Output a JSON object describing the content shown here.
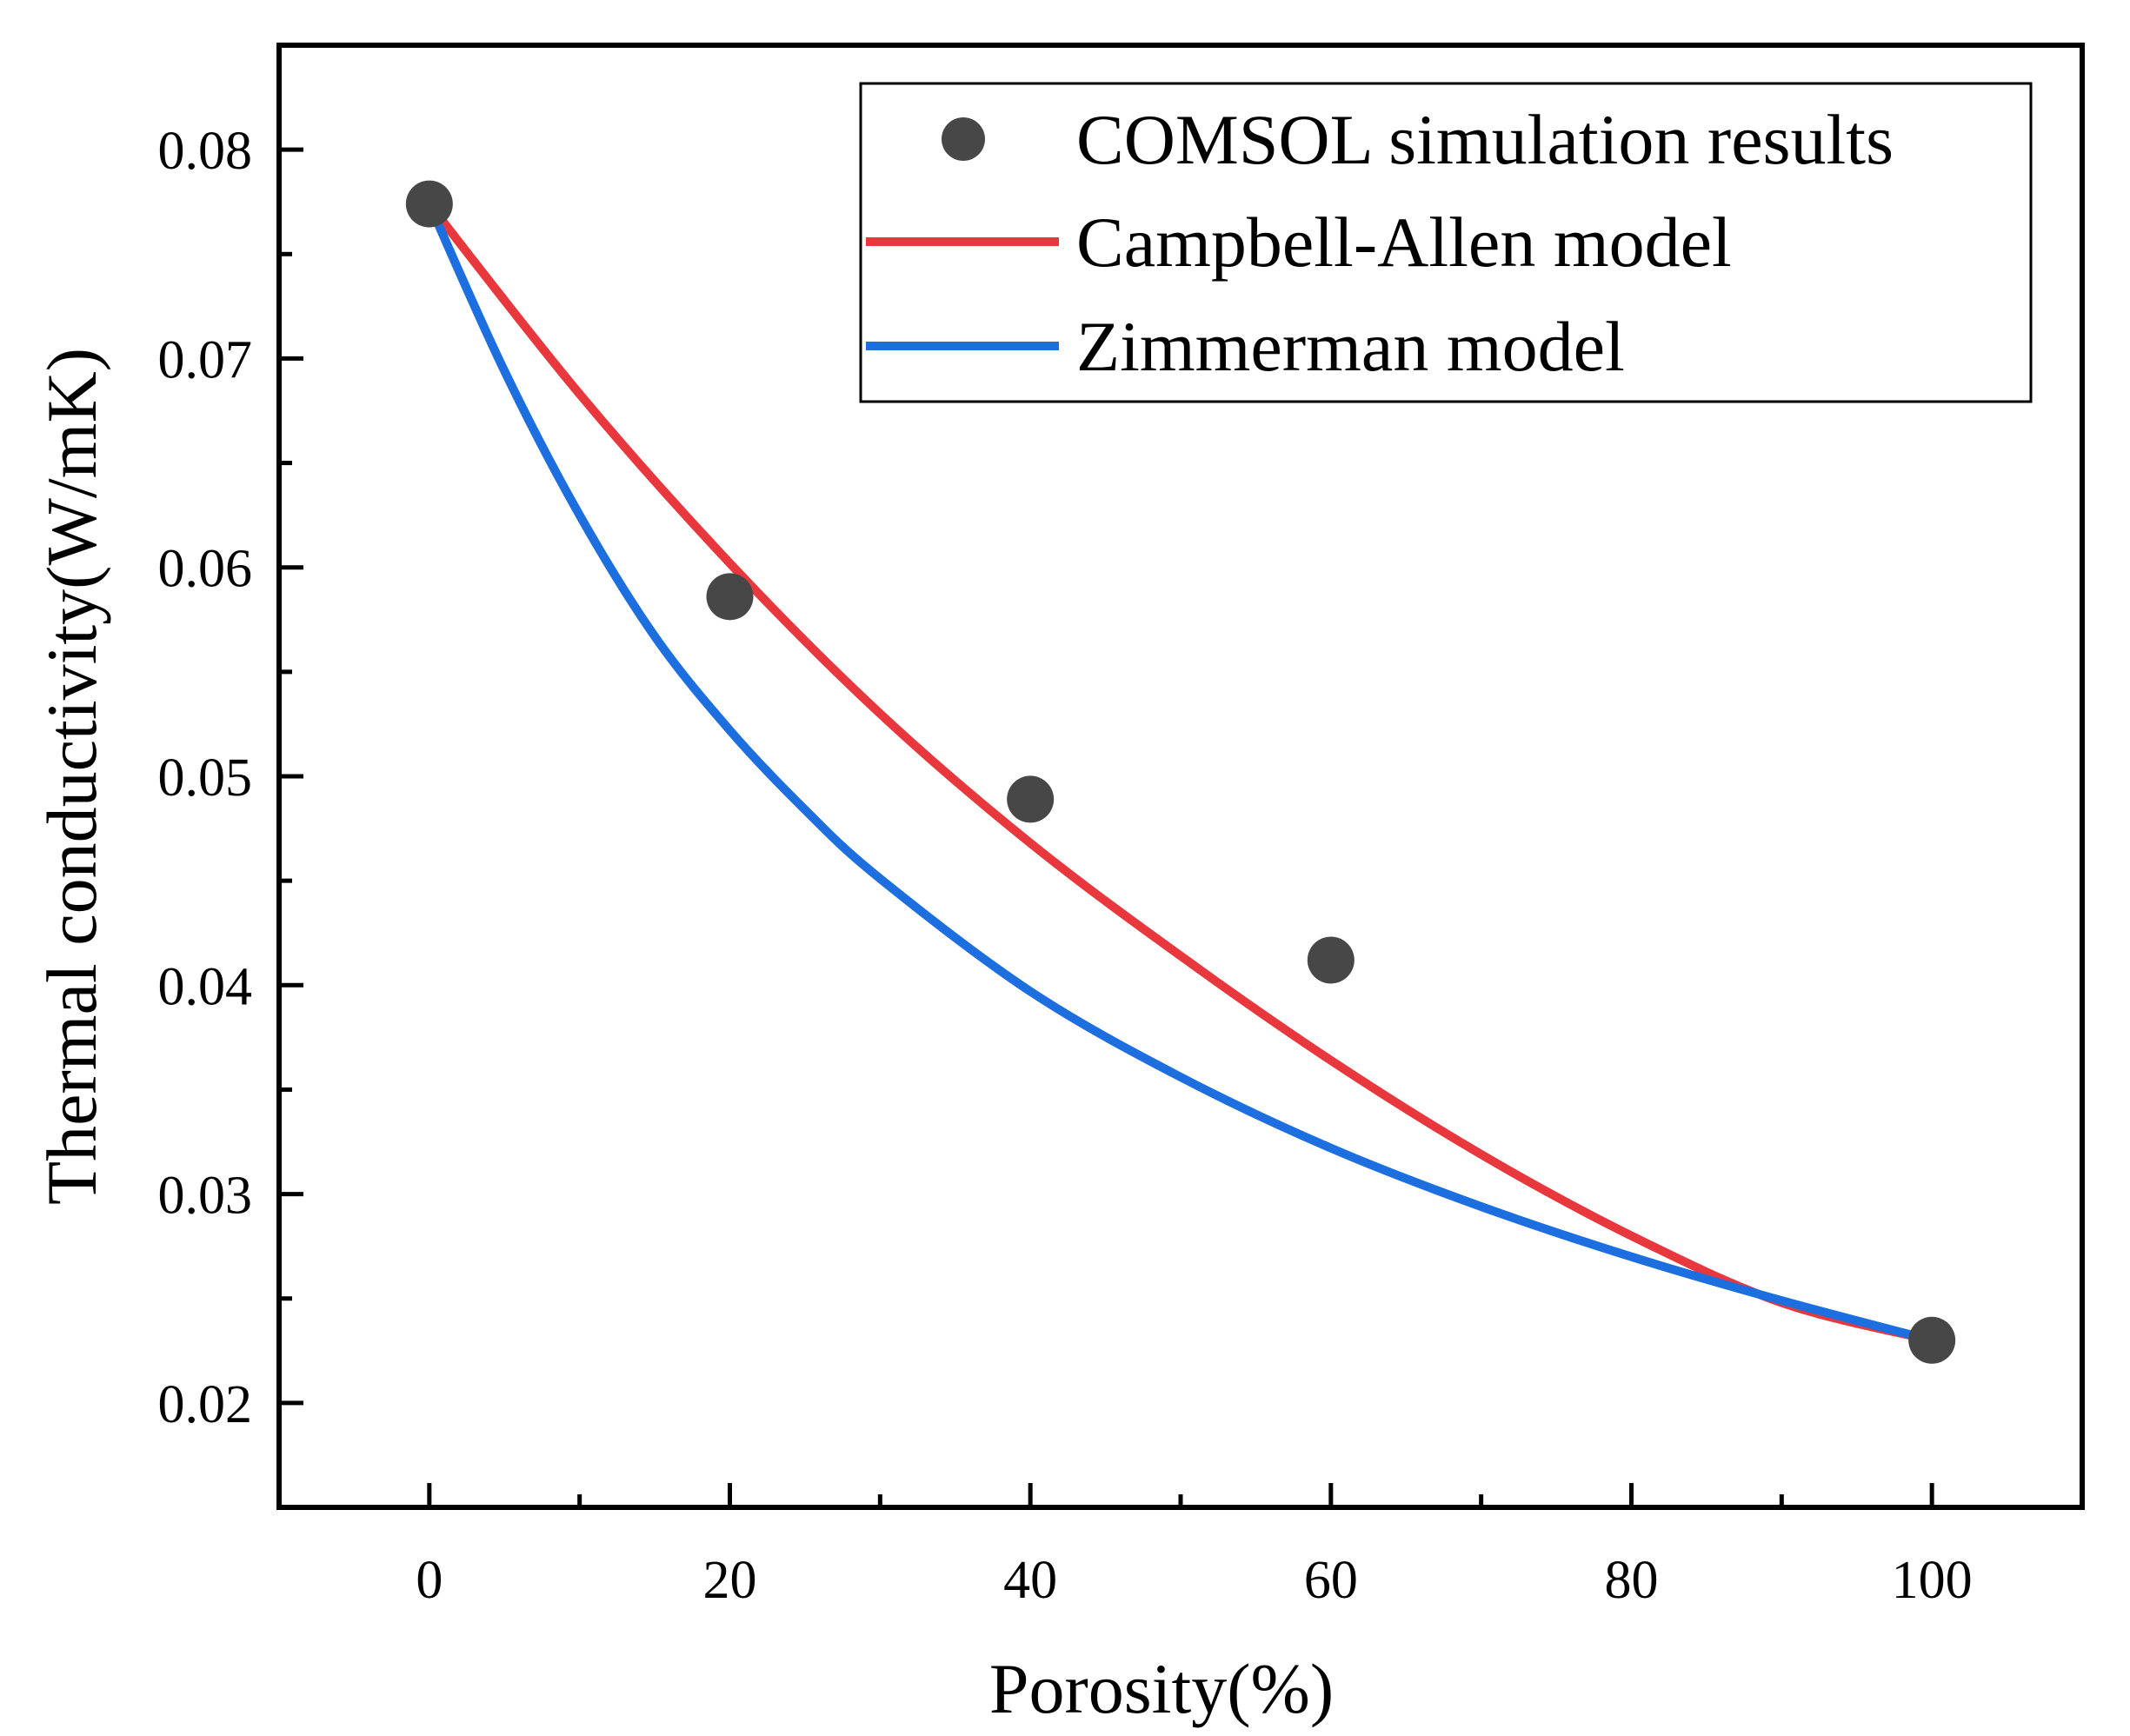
{
  "chart_data": {
    "type": "scatter",
    "xlabel": "Porosity(%)",
    "ylabel": "Thermal conductivity(W/mK)",
    "xlim": [
      -10,
      110
    ],
    "ylim": [
      0.015,
      0.085
    ],
    "x_ticks": [
      0,
      20,
      40,
      60,
      80,
      100
    ],
    "x_tick_labels": [
      "0",
      "20",
      "40",
      "60",
      "80",
      "100"
    ],
    "x_minor_ticks": [
      10,
      30,
      50,
      70,
      90
    ],
    "y_ticks": [
      0.02,
      0.03,
      0.04,
      0.05,
      0.06,
      0.07,
      0.08
    ],
    "y_tick_labels": [
      "0.02",
      "0.03",
      "0.04",
      "0.05",
      "0.06",
      "0.07",
      "0.08"
    ],
    "y_minor_ticks": [
      0.025,
      0.035,
      0.045,
      0.055,
      0.065,
      0.075
    ],
    "grid": false,
    "legend_position": "top-right",
    "series": [
      {
        "name": "COMSOL simulation results",
        "kind": "scatter",
        "color": "#474747",
        "x": [
          0,
          20,
          40,
          60,
          100
        ],
        "y": [
          0.0774,
          0.0586,
          0.0489,
          0.0412,
          0.023
        ]
      },
      {
        "name": "Campbell-Allen model",
        "kind": "line",
        "color": "#e8383d",
        "x": [
          0,
          10,
          20,
          30,
          40,
          50,
          60,
          70,
          80,
          90,
          100
        ],
        "y": [
          0.0774,
          0.0683,
          0.0602,
          0.053,
          0.0468,
          0.0414,
          0.0364,
          0.0319,
          0.028,
          0.0248,
          0.023
        ]
      },
      {
        "name": "Zimmerman model",
        "kind": "line",
        "color": "#1d6fe0",
        "x": [
          0,
          5,
          10,
          15,
          20,
          25,
          30,
          40,
          50,
          60,
          70,
          80,
          90,
          100
        ],
        "y": [
          0.0774,
          0.0694,
          0.0625,
          0.0567,
          0.0522,
          0.0484,
          0.0451,
          0.0397,
          0.0356,
          0.0322,
          0.0294,
          0.027,
          0.0249,
          0.023
        ]
      }
    ]
  }
}
